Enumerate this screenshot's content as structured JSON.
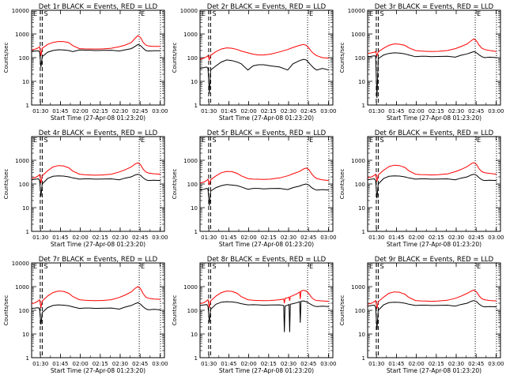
{
  "page": {
    "xlabel": "Start Time (27-Apr-08 01:23:20)",
    "ylabel": "Counts/sec"
  },
  "axes": {
    "x_ticks": [
      "01:30",
      "01:45",
      "02:00",
      "02:15",
      "02:30",
      "02:45",
      "03:00"
    ],
    "x_tick_minutes": [
      6.67,
      21.67,
      36.67,
      51.67,
      66.67,
      81.67,
      96.67
    ],
    "x_range_minutes": [
      0,
      100
    ],
    "y_scale": "log",
    "y_range": [
      1,
      10000
    ]
  },
  "series_colors": {
    "events": "#000000",
    "lld": "#ff0000"
  },
  "chart_data": [
    {
      "type": "line",
      "title": "Det 1r BLACK = Events, RED = LLD",
      "ylim": [
        1,
        10000
      ],
      "yscale": "log",
      "y_ticks": [
        "10000",
        "1000",
        "100",
        "10",
        "1"
      ],
      "markers": [
        {
          "label": "E",
          "x": 0
        },
        {
          "label": "S",
          "x": 8
        },
        {
          "label": "E",
          "x": 81
        }
      ],
      "dashed_lines": [
        6.5,
        8
      ],
      "dotted_lines": [
        81,
        97
      ],
      "x": [
        0,
        3,
        5,
        6,
        7,
        8,
        12,
        16,
        20,
        24,
        28,
        31,
        36,
        40,
        44,
        48,
        53,
        60,
        66,
        70,
        75,
        78,
        80,
        82,
        84,
        86,
        88,
        92,
        97
      ],
      "series": [
        {
          "key": "lld",
          "values": [
            210,
            230,
            260,
            290,
            120,
            250,
            360,
            440,
            480,
            480,
            430,
            320,
            240,
            235,
            232,
            230,
            232,
            250,
            290,
            330,
            430,
            660,
            860,
            700,
            440,
            340,
            310,
            300,
            300
          ]
        },
        {
          "key": "events",
          "values": [
            180,
            190,
            195,
            170,
            40,
            110,
            170,
            200,
            215,
            210,
            200,
            180,
            210,
            208,
            205,
            200,
            202,
            205,
            190,
            210,
            240,
            300,
            360,
            320,
            250,
            200,
            190,
            195,
            195
          ]
        }
      ]
    },
    {
      "type": "line",
      "title": "Det 2r BLACK = Events, RED = LLD",
      "ylim": [
        1,
        10000
      ],
      "yscale": "log",
      "y_ticks": [
        "10000",
        "1000",
        "100",
        "10",
        "1"
      ],
      "markers": [
        {
          "label": "E",
          "x": 0
        },
        {
          "label": "S",
          "x": 8
        },
        {
          "label": "E",
          "x": 81
        }
      ],
      "dashed_lines": [
        6.5,
        8
      ],
      "dotted_lines": [
        81,
        97
      ],
      "x": [
        0,
        3,
        5,
        6,
        7,
        8,
        12,
        16,
        20,
        24,
        28,
        31,
        36,
        40,
        44,
        48,
        53,
        60,
        66,
        70,
        75,
        78,
        80,
        82,
        84,
        86,
        88,
        92,
        97
      ],
      "series": [
        {
          "key": "lld",
          "values": [
            85,
            95,
            110,
            120,
            80,
            125,
            180,
            230,
            260,
            250,
            220,
            190,
            160,
            140,
            130,
            130,
            140,
            175,
            220,
            270,
            330,
            360,
            330,
            250,
            180,
            140,
            120,
            100,
            95
          ]
        },
        {
          "key": "events",
          "values": [
            35,
            38,
            40,
            35,
            3,
            30,
            45,
            65,
            80,
            75,
            65,
            55,
            30,
            45,
            50,
            50,
            45,
            40,
            30,
            55,
            75,
            85,
            80,
            60,
            45,
            35,
            30,
            35,
            30
          ]
        }
      ]
    },
    {
      "type": "line",
      "title": "Det 3r BLACK = Events, RED = LLD",
      "ylim": [
        1,
        10000
      ],
      "yscale": "log",
      "y_ticks": [
        "10000",
        "1000",
        "100",
        "10",
        "1"
      ],
      "markers": [
        {
          "label": "E",
          "x": 0
        },
        {
          "label": "S",
          "x": 8
        },
        {
          "label": "E",
          "x": 81
        }
      ],
      "dashed_lines": [
        6.5,
        8
      ],
      "dotted_lines": [
        81,
        97
      ],
      "x": [
        0,
        3,
        5,
        6,
        7,
        8,
        12,
        16,
        20,
        24,
        28,
        31,
        36,
        40,
        44,
        48,
        53,
        60,
        66,
        70,
        75,
        78,
        80,
        82,
        84,
        86,
        88,
        92,
        97
      ],
      "series": [
        {
          "key": "lld",
          "values": [
            150,
            160,
            170,
            180,
            120,
            175,
            250,
            330,
            380,
            370,
            330,
            260,
            200,
            190,
            185,
            180,
            185,
            200,
            240,
            290,
            380,
            520,
            620,
            500,
            330,
            250,
            220,
            200,
            180
          ]
        },
        {
          "key": "events",
          "values": [
            110,
            115,
            120,
            115,
            2,
            90,
            130,
            150,
            160,
            155,
            145,
            130,
            110,
            115,
            115,
            110,
            112,
            115,
            105,
            125,
            145,
            165,
            180,
            160,
            130,
            110,
            100,
            105,
            100
          ]
        }
      ]
    },
    {
      "type": "line",
      "title": "Det 4r BLACK = Events, RED = LLD",
      "ylim": [
        1,
        10000
      ],
      "yscale": "log",
      "y_ticks": [
        "1000",
        "100",
        "10",
        "1"
      ],
      "markers": [
        {
          "label": "E",
          "x": 0
        },
        {
          "label": "S",
          "x": 8
        },
        {
          "label": "E",
          "x": 81
        }
      ],
      "dashed_lines": [
        6.5,
        8
      ],
      "dotted_lines": [
        81,
        97
      ],
      "x": [
        0,
        3,
        5,
        6,
        7,
        8,
        12,
        16,
        20,
        24,
        28,
        31,
        36,
        40,
        44,
        48,
        53,
        60,
        66,
        70,
        75,
        78,
        80,
        82,
        84,
        86,
        88,
        92,
        97
      ],
      "series": [
        {
          "key": "lld",
          "values": [
            170,
            190,
            220,
            250,
            110,
            220,
            360,
            520,
            600,
            580,
            480,
            350,
            260,
            245,
            240,
            235,
            240,
            260,
            320,
            390,
            520,
            700,
            780,
            650,
            420,
            320,
            290,
            270,
            260
          ]
        },
        {
          "key": "events",
          "values": [
            150,
            160,
            165,
            140,
            30,
            100,
            170,
            210,
            220,
            215,
            200,
            180,
            160,
            165,
            165,
            160,
            162,
            165,
            150,
            175,
            200,
            240,
            260,
            230,
            180,
            150,
            140,
            145,
            140
          ]
        }
      ]
    },
    {
      "type": "line",
      "title": "Det 5r BLACK = Events, RED = LLD",
      "ylim": [
        1,
        10000
      ],
      "yscale": "log",
      "y_ticks": [
        "1000",
        "100",
        "10",
        "1"
      ],
      "markers": [
        {
          "label": "E",
          "x": 0
        },
        {
          "label": "S",
          "x": 8
        },
        {
          "label": "E",
          "x": 81
        }
      ],
      "dashed_lines": [
        6.5,
        8
      ],
      "dotted_lines": [
        81,
        97
      ],
      "x": [
        0,
        3,
        5,
        6,
        7,
        8,
        12,
        16,
        20,
        24,
        28,
        31,
        36,
        40,
        44,
        48,
        53,
        60,
        66,
        70,
        75,
        78,
        80,
        82,
        84,
        86,
        88,
        92,
        97
      ],
      "series": [
        {
          "key": "lld",
          "values": [
            110,
            120,
            140,
            160,
            90,
            150,
            220,
            300,
            340,
            330,
            280,
            220,
            170,
            160,
            158,
            155,
            160,
            180,
            220,
            270,
            340,
            430,
            470,
            400,
            270,
            200,
            170,
            150,
            140
          ]
        },
        {
          "key": "events",
          "values": [
            55,
            60,
            65,
            60,
            12,
            50,
            70,
            85,
            95,
            90,
            85,
            75,
            60,
            65,
            65,
            62,
            64,
            65,
            58,
            70,
            82,
            95,
            100,
            90,
            70,
            60,
            55,
            58,
            55
          ]
        }
      ]
    },
    {
      "type": "line",
      "title": "Det 6r BLACK = Events, RED = LLD",
      "ylim": [
        1,
        10000
      ],
      "yscale": "log",
      "y_ticks": [
        "1000",
        "100",
        "10",
        "1"
      ],
      "markers": [
        {
          "label": "E",
          "x": 0
        },
        {
          "label": "S",
          "x": 8
        },
        {
          "label": "E",
          "x": 81
        }
      ],
      "dashed_lines": [
        6.5,
        8
      ],
      "dotted_lines": [
        81,
        97
      ],
      "x": [
        0,
        3,
        5,
        6,
        7,
        8,
        12,
        16,
        20,
        24,
        28,
        31,
        36,
        40,
        44,
        48,
        53,
        60,
        66,
        70,
        75,
        78,
        80,
        82,
        84,
        86,
        88,
        92,
        97
      ],
      "series": [
        {
          "key": "lld",
          "values": [
            180,
            200,
            230,
            260,
            130,
            240,
            380,
            540,
            620,
            600,
            500,
            360,
            260,
            250,
            245,
            240,
            245,
            265,
            330,
            400,
            540,
            720,
            800,
            660,
            430,
            330,
            300,
            280,
            260
          ]
        },
        {
          "key": "events",
          "values": [
            150,
            160,
            165,
            140,
            25,
            100,
            170,
            210,
            220,
            215,
            200,
            180,
            160,
            165,
            165,
            160,
            162,
            165,
            150,
            175,
            200,
            240,
            260,
            230,
            180,
            150,
            140,
            145,
            140
          ]
        }
      ]
    },
    {
      "type": "line",
      "title": "Det 7r BLACK = Events, RED = LLD",
      "ylim": [
        1,
        10000
      ],
      "yscale": "log",
      "y_ticks": [
        "10000",
        "1000",
        "100",
        "10",
        "1"
      ],
      "markers": [
        {
          "label": "E",
          "x": 0
        },
        {
          "label": "S",
          "x": 8
        },
        {
          "label": "E",
          "x": 81
        }
      ],
      "dashed_lines": [
        6.5,
        8
      ],
      "dotted_lines": [
        81,
        97
      ],
      "x": [
        0,
        3,
        5,
        6,
        7,
        8,
        12,
        16,
        20,
        24,
        28,
        31,
        36,
        40,
        44,
        48,
        53,
        60,
        66,
        70,
        75,
        78,
        80,
        82,
        84,
        86,
        88,
        92,
        97
      ],
      "series": [
        {
          "key": "lld",
          "values": [
            190,
            210,
            250,
            280,
            130,
            250,
            400,
            560,
            650,
            630,
            520,
            380,
            280,
            265,
            260,
            255,
            260,
            280,
            350,
            430,
            600,
            850,
            1000,
            820,
            500,
            360,
            320,
            300,
            290
          ]
        },
        {
          "key": "events",
          "values": [
            120,
            125,
            130,
            110,
            25,
            80,
            130,
            160,
            170,
            165,
            155,
            140,
            120,
            125,
            125,
            120,
            122,
            125,
            112,
            135,
            160,
            190,
            210,
            180,
            140,
            115,
            105,
            110,
            105
          ]
        }
      ]
    },
    {
      "type": "line",
      "title": "Det 8r BLACK = Events, RED = LLD",
      "ylim": [
        1,
        10000
      ],
      "yscale": "log",
      "y_ticks": [
        "1000",
        "100",
        "10",
        "1"
      ],
      "markers": [
        {
          "label": "E",
          "x": 0
        },
        {
          "label": "S",
          "x": 8
        },
        {
          "label": "E",
          "x": 81
        }
      ],
      "dashed_lines": [
        6.5,
        8
      ],
      "dotted_lines": [
        81,
        97
      ],
      "x": [
        0,
        3,
        5,
        6,
        7,
        8,
        12,
        16,
        20,
        24,
        28,
        31,
        36,
        40,
        44,
        48,
        53,
        60,
        63,
        63.5,
        64,
        66,
        67,
        67.5,
        68,
        70,
        73,
        75,
        75.5,
        76,
        78,
        80,
        82,
        84,
        86,
        88,
        92,
        97
      ],
      "series": [
        {
          "key": "lld",
          "values": [
            190,
            210,
            250,
            280,
            130,
            250,
            400,
            560,
            650,
            630,
            520,
            380,
            280,
            265,
            260,
            255,
            260,
            280,
            300,
            200,
            320,
            340,
            360,
            250,
            380,
            420,
            500,
            600,
            300,
            650,
            700,
            650,
            500,
            350,
            280,
            260,
            250,
            240
          ]
        },
        {
          "key": "events",
          "values": [
            160,
            170,
            175,
            150,
            30,
            110,
            180,
            220,
            230,
            225,
            210,
            190,
            170,
            172,
            170,
            165,
            168,
            170,
            160,
            12,
            150,
            165,
            175,
            12,
            180,
            190,
            210,
            230,
            30,
            240,
            250,
            230,
            200,
            170,
            150,
            145,
            150,
            145
          ]
        }
      ]
    },
    {
      "type": "line",
      "title": "Det 9r BLACK = Events, RED = LLD",
      "ylim": [
        1,
        10000
      ],
      "yscale": "log",
      "y_ticks": [
        "1000",
        "100",
        "10",
        "1"
      ],
      "markers": [
        {
          "label": "E",
          "x": 0
        },
        {
          "label": "S",
          "x": 8
        },
        {
          "label": "E",
          "x": 81
        }
      ],
      "dashed_lines": [
        6.5,
        8
      ],
      "dotted_lines": [
        81,
        97
      ],
      "x": [
        0,
        3,
        5,
        6,
        7,
        8,
        12,
        16,
        20,
        24,
        28,
        31,
        36,
        40,
        44,
        48,
        53,
        60,
        66,
        70,
        75,
        78,
        80,
        82,
        84,
        86,
        88,
        92,
        97
      ],
      "series": [
        {
          "key": "lld",
          "values": [
            180,
            200,
            230,
            260,
            120,
            230,
            360,
            520,
            600,
            580,
            480,
            350,
            260,
            250,
            245,
            240,
            245,
            265,
            320,
            390,
            520,
            650,
            720,
            600,
            400,
            310,
            280,
            260,
            250
          ]
        },
        {
          "key": "events",
          "values": [
            150,
            160,
            165,
            140,
            15,
            100,
            170,
            210,
            220,
            215,
            200,
            180,
            160,
            165,
            165,
            160,
            162,
            165,
            150,
            175,
            200,
            240,
            260,
            230,
            180,
            150,
            140,
            145,
            140
          ]
        }
      ]
    }
  ]
}
